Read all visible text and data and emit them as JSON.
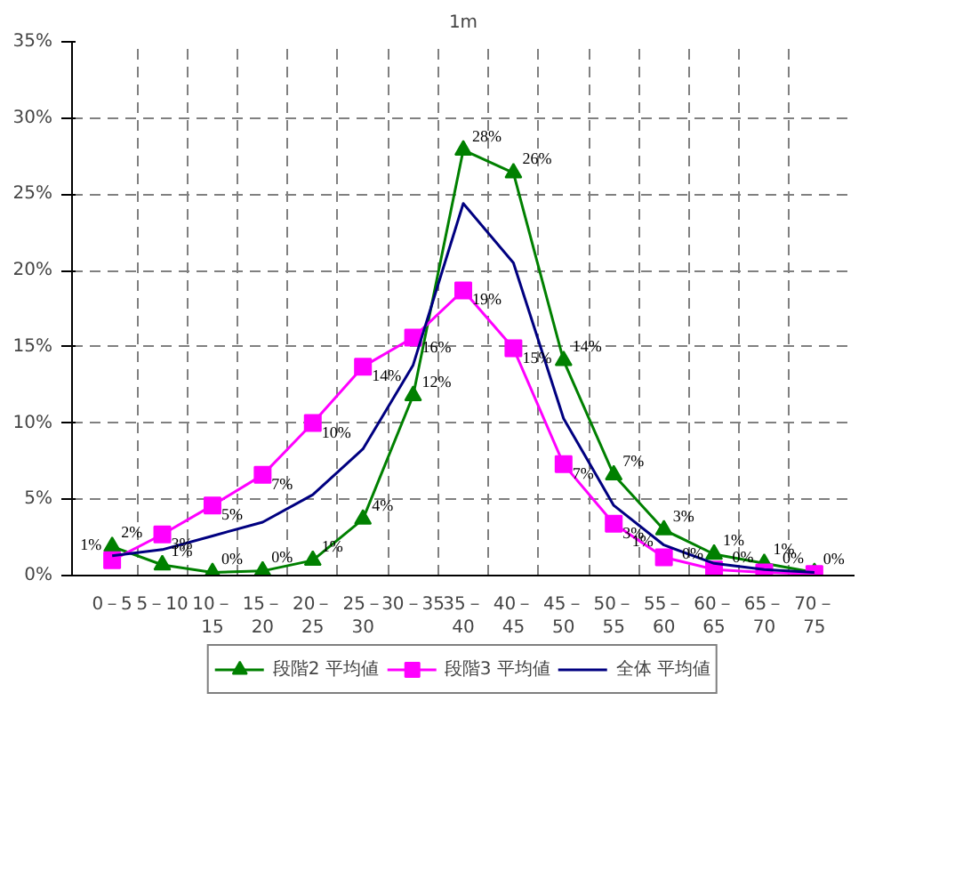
{
  "chart_data": {
    "type": "line",
    "title": "1m",
    "categories": [
      "0－5",
      "5－10",
      "10－\n15",
      "15－\n20",
      "20－\n25",
      "25－\n30",
      "30－35",
      "35－\n40",
      "40－\n45",
      "45－\n50",
      "50－\n55",
      "55－\n60",
      "60－\n65",
      "65－\n70",
      "70－\n75"
    ],
    "series": [
      {
        "name": "段階2 平均値",
        "color": "#008000",
        "marker": "triangle",
        "values": [
          1.9,
          0.7,
          0.2,
          0.3,
          1.0,
          3.7,
          11.8,
          27.9,
          26.4,
          14.1,
          6.6,
          3.0,
          1.4,
          0.8,
          0.2
        ],
        "value_labels": [
          "2%",
          "1%",
          "0%",
          "0%",
          "1%",
          "4%",
          "12%",
          "28%",
          "26%",
          "14%",
          "7%",
          "3%",
          "1%",
          "1%",
          "0%"
        ]
      },
      {
        "name": "段階3 平均値",
        "color": "#ff00ff",
        "marker": "square",
        "values": [
          1.0,
          2.7,
          4.6,
          6.6,
          10.0,
          13.7,
          15.6,
          18.7,
          14.9,
          7.3,
          3.4,
          1.2,
          0.4,
          0.2,
          0.1
        ],
        "value_labels": [
          "1%",
          "3%",
          "5%",
          "7%",
          "10%",
          "14%",
          "16%",
          "19%",
          "15%",
          "7%",
          "3%",
          "1%",
          "0%",
          "0%",
          "0%"
        ]
      },
      {
        "name": "全体 平均値",
        "color": "#000080",
        "marker": "none",
        "values": [
          1.3,
          1.7,
          2.6,
          3.5,
          5.3,
          8.3,
          13.8,
          24.4,
          20.5,
          10.3,
          4.6,
          2.0,
          0.8,
          0.4,
          0.2
        ]
      }
    ],
    "ylim": [
      0,
      35
    ],
    "yticks": [
      {
        "value": 0,
        "label": "0%"
      },
      {
        "value": 5,
        "label": "5%"
      },
      {
        "value": 10,
        "label": "10%"
      },
      {
        "value": 15,
        "label": "15%"
      },
      {
        "value": 20,
        "label": "20%"
      },
      {
        "value": 25,
        "label": "25%"
      },
      {
        "value": 30,
        "label": "30%"
      },
      {
        "value": 35,
        "label": "35%"
      }
    ],
    "grid": true,
    "legend": "bottom",
    "line_style": "solid"
  }
}
